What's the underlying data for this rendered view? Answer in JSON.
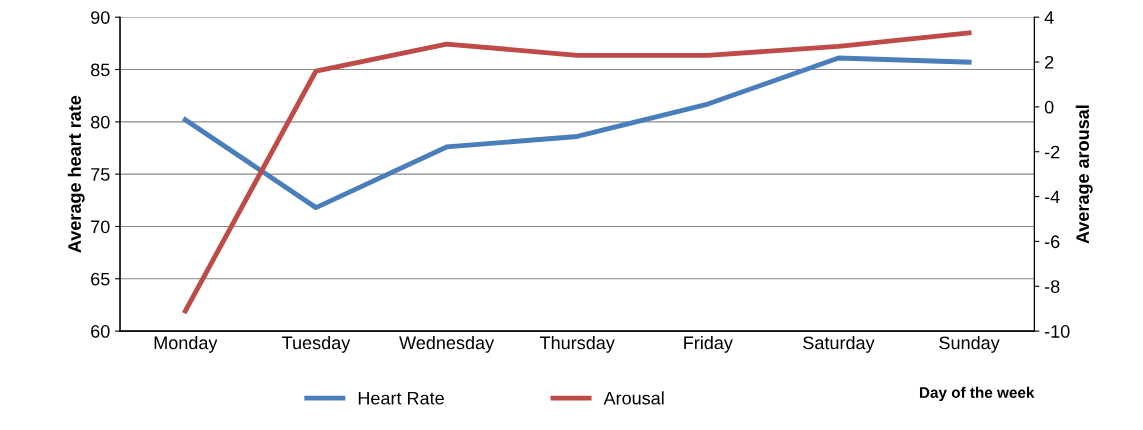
{
  "chart_data": {
    "type": "line",
    "categories": [
      "Monday",
      "Tuesday",
      "Wednesday",
      "Thursday",
      "Friday",
      "Saturday",
      "Sunday"
    ],
    "series": [
      {
        "name": "Heart Rate",
        "color": "#4a7ebb",
        "values": [
          80.2,
          71.8,
          77.6,
          78.6,
          81.7,
          86.1,
          85.7
        ]
      },
      {
        "name": "Arousal",
        "color": "#be4b48",
        "axis": "y2",
        "values": [
          -9.1,
          1.6,
          2.8,
          2.3,
          2.3,
          2.7,
          3.3
        ]
      }
    ],
    "xlabel": "Day of the week",
    "ylabel": "Average heart rate",
    "y2label": "Average arousal",
    "ylim": [
      60,
      90
    ],
    "yticks": [
      60,
      65,
      70,
      75,
      80,
      85,
      90
    ],
    "y2lim": [
      -10,
      4
    ],
    "y2ticks": [
      -10,
      -8,
      -6,
      -4,
      -2,
      0,
      2,
      4
    ],
    "grid": "y",
    "legend": "bottom",
    "marker": "none",
    "line_style": "solid"
  }
}
